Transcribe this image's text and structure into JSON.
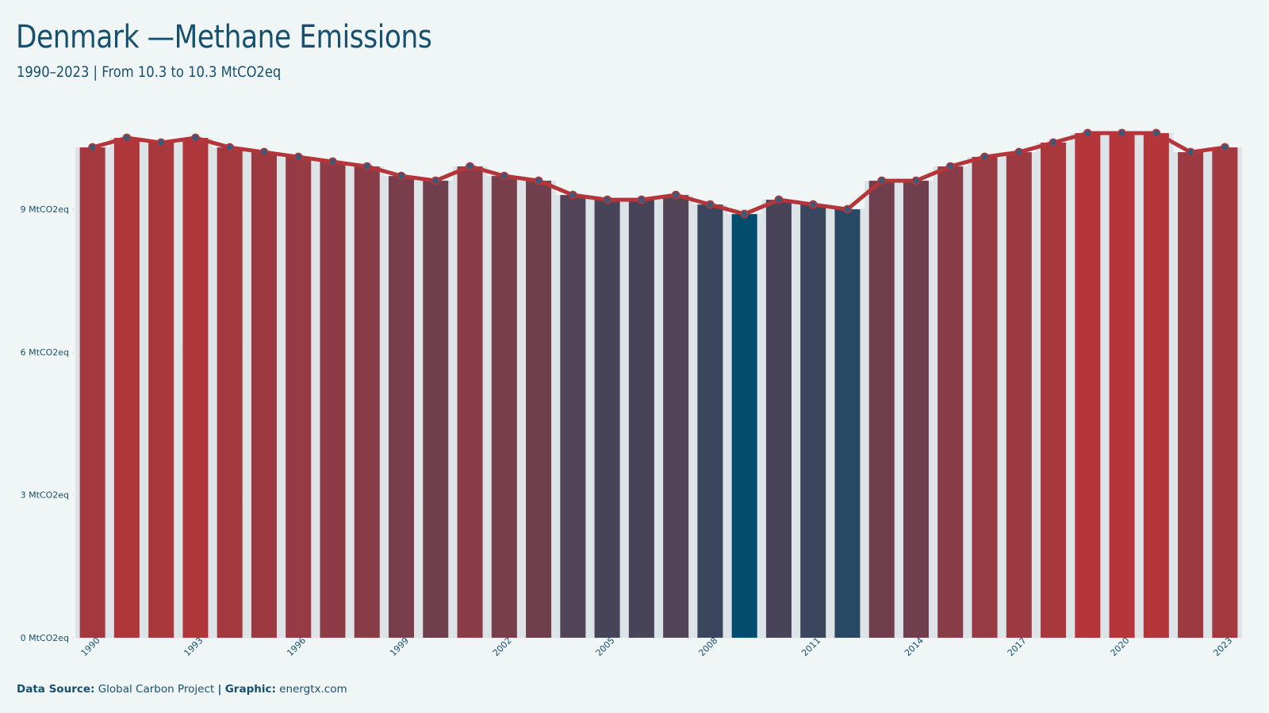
{
  "header": {
    "title": "Denmark —Methane Emissions",
    "subtitle": "1990–2023 | From 10.3 to 10.3 MtCO2eq"
  },
  "caption": {
    "source_label": "Data Source:",
    "source_value": "Global Carbon Project",
    "separator": "|",
    "graphic_label": "Graphic:",
    "graphic_value": "energtx.com"
  },
  "colors": {
    "background": "#f0f5f5",
    "high": "#b5363a",
    "low": "#024d6e",
    "line": "#b5363a",
    "marker": "#3c5a78",
    "text": "#17506e"
  },
  "chart_data": {
    "type": "bar",
    "x": [
      1990,
      1991,
      1992,
      1993,
      1994,
      1995,
      1996,
      1997,
      1998,
      1999,
      2000,
      2001,
      2002,
      2003,
      2004,
      2005,
      2006,
      2007,
      2008,
      2009,
      2010,
      2011,
      2012,
      2013,
      2014,
      2015,
      2016,
      2017,
      2018,
      2019,
      2020,
      2021,
      2022,
      2023
    ],
    "values": [
      10.3,
      10.5,
      10.4,
      10.5,
      10.3,
      10.2,
      10.1,
      10.0,
      9.9,
      9.7,
      9.6,
      9.9,
      9.7,
      9.6,
      9.3,
      9.2,
      9.2,
      9.3,
      9.1,
      8.9,
      9.2,
      9.1,
      9.0,
      9.6,
      9.6,
      9.9,
      10.1,
      10.2,
      10.4,
      10.6,
      10.6,
      10.6,
      10.2,
      10.3
    ],
    "overlay_line": true,
    "x_tick_labels": [
      "1990",
      "1993",
      "1996",
      "1999",
      "2002",
      "2005",
      "2008",
      "2011",
      "2014",
      "2017",
      "2020",
      "2023"
    ],
    "y_ticks": [
      0,
      3,
      6,
      9
    ],
    "y_tick_labels": [
      "0 MtCO2eq",
      "3 MtCO2eq",
      "6 MtCO2eq",
      "9 MtCO2eq"
    ],
    "ylim": [
      0,
      10.9
    ],
    "grid": "horizontal",
    "legend": "none"
  }
}
